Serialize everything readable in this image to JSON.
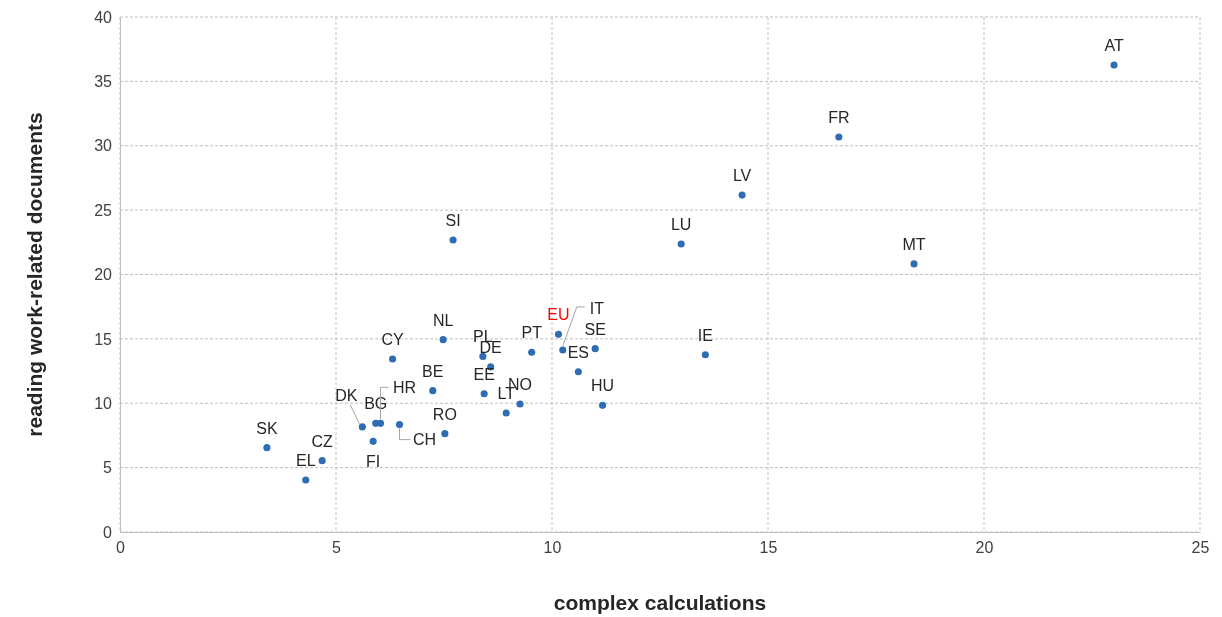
{
  "chart_data": {
    "type": "scatter",
    "xlabel": "complex calculations",
    "ylabel": "reading work-related documents",
    "xlim": [
      0,
      25
    ],
    "xticks": [
      0,
      5,
      10,
      15,
      20,
      25
    ],
    "ylim": [
      0,
      40
    ],
    "yticks": [
      0,
      5,
      10,
      15,
      20,
      25,
      30,
      35,
      40
    ],
    "grid": true,
    "marker": "circle",
    "x": [
      3.4,
      4.3,
      4.68,
      5.61,
      5.92,
      6.03,
      5.86,
      6.47,
      6.31,
      7.48,
      7.24,
      7.52,
      8.4,
      8.58,
      8.43,
      8.94,
      9.26,
      9.53,
      10.15,
      10.25,
      11.0,
      10.61,
      11.17,
      13.55,
      7.71,
      12.99,
      14.4,
      16.64,
      18.38,
      23.01
    ],
    "series": [
      {
        "color": "#2e6db4",
        "values": [
          6.55,
          4.04,
          5.54,
          8.16,
          8.44,
          8.44,
          7.04,
          8.34,
          13.44,
          14.94,
          10.98,
          7.64,
          13.64,
          12.82,
          10.74,
          9.24,
          9.94,
          13.96,
          15.35,
          14.14,
          14.24,
          12.45,
          9.84,
          13.77,
          22.68,
          22.37,
          26.17,
          30.68,
          20.82,
          36.27
        ]
      }
    ],
    "annotations": [
      {
        "text": "SK",
        "x": 3.4,
        "y": 6.55
      },
      {
        "text": "EL",
        "x": 4.3,
        "y": 4.04
      },
      {
        "text": "CZ",
        "x": 4.68,
        "y": 5.54
      },
      {
        "text": "DK",
        "x": 5.61,
        "y": 8.16
      },
      {
        "text": "BG",
        "x": 5.92,
        "y": 8.44
      },
      {
        "text": "HR",
        "x": 6.03,
        "y": 8.44
      },
      {
        "text": "FI",
        "x": 5.86,
        "y": 7.04
      },
      {
        "text": "CH",
        "x": 6.47,
        "y": 8.34
      },
      {
        "text": "CY",
        "x": 6.31,
        "y": 13.44
      },
      {
        "text": "NL",
        "x": 7.48,
        "y": 14.94
      },
      {
        "text": "BE",
        "x": 7.24,
        "y": 10.98
      },
      {
        "text": "RO",
        "x": 7.52,
        "y": 7.64
      },
      {
        "text": "PL",
        "x": 8.4,
        "y": 13.64
      },
      {
        "text": "DE",
        "x": 8.58,
        "y": 12.82
      },
      {
        "text": "EE",
        "x": 8.43,
        "y": 10.74
      },
      {
        "text": "LT",
        "x": 8.94,
        "y": 9.24
      },
      {
        "text": "NO",
        "x": 9.26,
        "y": 9.94
      },
      {
        "text": "PT",
        "x": 9.53,
        "y": 13.96
      },
      {
        "text": "EU",
        "x": 10.15,
        "y": 15.35
      },
      {
        "text": "IT",
        "x": 10.25,
        "y": 14.14
      },
      {
        "text": "SE",
        "x": 11.0,
        "y": 14.24
      },
      {
        "text": "ES",
        "x": 10.61,
        "y": 12.45
      },
      {
        "text": "HU",
        "x": 11.17,
        "y": 9.84
      },
      {
        "text": "IE",
        "x": 13.55,
        "y": 13.77
      },
      {
        "text": "SI",
        "x": 7.71,
        "y": 22.68
      },
      {
        "text": "LU",
        "x": 12.99,
        "y": 22.37
      },
      {
        "text": "LV",
        "x": 14.4,
        "y": 26.17
      },
      {
        "text": "FR",
        "x": 16.64,
        "y": 30.68
      },
      {
        "text": "MT",
        "x": 18.38,
        "y": 20.82
      },
      {
        "text": "AT",
        "x": 23.01,
        "y": 36.27
      }
    ]
  }
}
